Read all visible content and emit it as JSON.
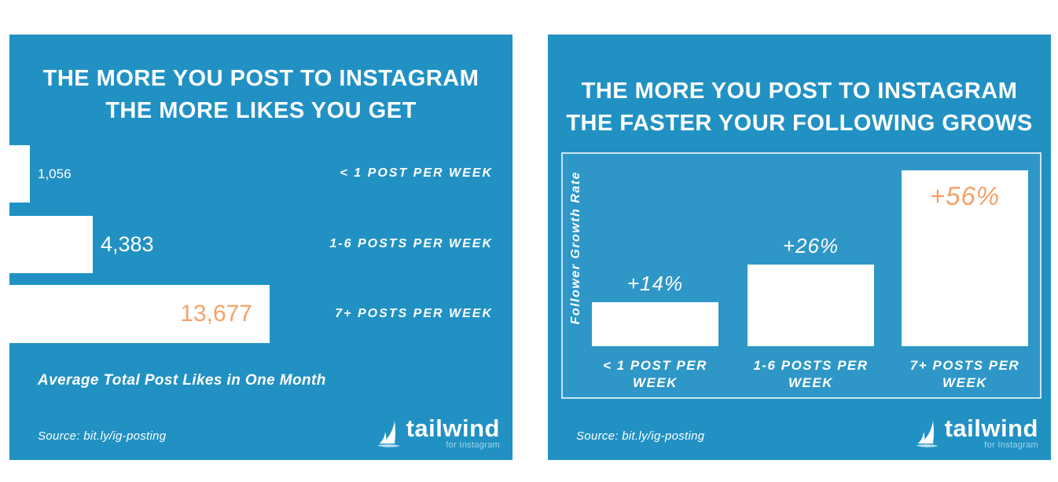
{
  "colors": {
    "page_background": "#ffffff",
    "card_blue": "#2191c4",
    "bar_white": "#ffffff",
    "accent_orange": "#f4a169",
    "logo_subtext_blue": "#a5d6ec"
  },
  "branding": {
    "wordmark": "tailwind",
    "subtext": "for Instagram"
  },
  "chart_data": [
    {
      "type": "bar",
      "orientation": "horizontal",
      "title": "THE MORE YOU POST TO INSTAGRAM THE MORE LIKES YOU GET",
      "title_lines": [
        "THE MORE YOU POST TO INSTAGRAM",
        "THE MORE LIKES YOU GET"
      ],
      "categories": [
        "< 1 POST PER WEEK",
        "1-6 POSTS PER WEEK",
        "7+ POSTS PER WEEK"
      ],
      "values": [
        1056,
        4383,
        13677
      ],
      "value_labels": [
        "1,056",
        "4,383",
        "13,677"
      ],
      "xlabel": "Average Total Post Likes in One Month",
      "xlim": [
        0,
        13677
      ],
      "grid": false,
      "legend": false,
      "source": "Source: bit.ly/ig-posting"
    },
    {
      "type": "bar",
      "orientation": "vertical",
      "title": "THE MORE YOU POST TO INSTAGRAM THE FASTER YOUR FOLLOWING GROWS",
      "title_lines": [
        "THE MORE YOU POST TO INSTAGRAM",
        "THE FASTER YOUR FOLLOWING GROWS"
      ],
      "categories": [
        "< 1 POST PER WEEK",
        "1-6 POSTS PER WEEK",
        "7+ POSTS PER WEEK"
      ],
      "categories_lines": [
        [
          "< 1 POST PER",
          "WEEK"
        ],
        [
          "1-6 POSTS PER",
          "WEEK"
        ],
        [
          "7+ POSTS PER",
          "WEEK"
        ]
      ],
      "values": [
        14,
        26,
        56
      ],
      "value_labels": [
        "+14%",
        "+26%",
        "+56%"
      ],
      "ylabel": "Follower Growth Rate",
      "ylim": [
        0,
        60
      ],
      "grid": false,
      "legend": false,
      "source": "Source: bit.ly/ig-posting"
    }
  ]
}
